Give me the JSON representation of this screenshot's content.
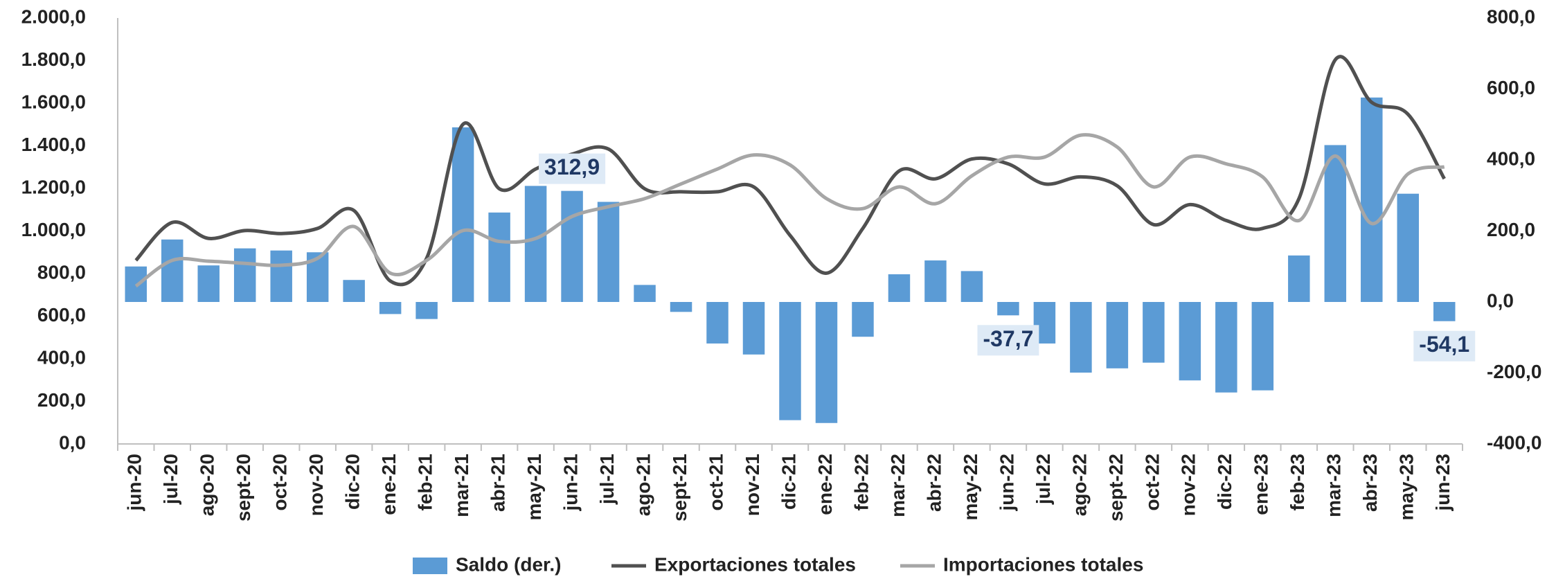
{
  "chart_data": {
    "type": "bar",
    "categories": [
      "jun-20",
      "jul-20",
      "ago-20",
      "sept-20",
      "oct-20",
      "nov-20",
      "dic-20",
      "ene-21",
      "feb-21",
      "mar-21",
      "abr-21",
      "may-21",
      "jun-21",
      "jul-21",
      "ago-21",
      "sept-21",
      "oct-21",
      "nov-21",
      "dic-21",
      "ene-22",
      "feb-22",
      "mar-22",
      "abr-22",
      "may-22",
      "jun-22",
      "jul-22",
      "ago-22",
      "sept-22",
      "oct-22",
      "nov-22",
      "dic-22",
      "ene-23",
      "feb-23",
      "mar-23",
      "abr-23",
      "may-23",
      "jun-23"
    ],
    "series": [
      {
        "name": "Saldo (der.)",
        "type": "bar",
        "axis": "y2",
        "color": "#5b9bd5",
        "values": [
          100,
          176,
          103,
          151,
          145,
          140,
          62,
          -34,
          -48,
          492,
          252,
          327,
          312.9,
          282,
          48,
          -28,
          -117,
          -148,
          -333,
          -341,
          -98,
          78,
          117,
          87,
          -37.7,
          -117,
          -199,
          -187,
          -171,
          -221,
          -255,
          -249,
          131,
          442,
          576,
          305,
          -54.1
        ],
        "value_labels": [
          null,
          null,
          null,
          null,
          null,
          null,
          null,
          null,
          null,
          null,
          null,
          null,
          "312,9",
          null,
          null,
          null,
          null,
          null,
          null,
          null,
          null,
          null,
          null,
          null,
          "-37,7",
          null,
          null,
          null,
          null,
          null,
          null,
          null,
          null,
          null,
          null,
          null,
          "-54,1"
        ]
      },
      {
        "name": "Exportaciones totales",
        "type": "line",
        "color": "#505050",
        "values": [
          862,
          1040,
          965,
          1002,
          988,
          1012,
          1096,
          765,
          872,
          1501,
          1198,
          1291,
          1361,
          1385,
          1198,
          1184,
          1184,
          1207,
          979,
          802,
          1012,
          1282,
          1245,
          1338,
          1315,
          1221,
          1254,
          1212,
          1030,
          1124,
          1049,
          1012,
          1152,
          1804,
          1604,
          1548,
          1245
        ]
      },
      {
        "name": "Importaciones totales",
        "type": "line",
        "color": "#a6a6a6",
        "values": [
          741,
          862,
          858,
          848,
          839,
          872,
          1021,
          802,
          862,
          1002,
          951,
          965,
          1068,
          1114,
          1152,
          1221,
          1291,
          1357,
          1310,
          1152,
          1105,
          1207,
          1128,
          1259,
          1347,
          1347,
          1450,
          1394,
          1207,
          1347,
          1315,
          1254,
          1049,
          1352,
          1035,
          1268,
          1301
        ]
      }
    ],
    "ylim": [
      0,
      2000
    ],
    "yticks": [
      {
        "value": 0,
        "label": "0,0"
      },
      {
        "value": 200,
        "label": "200,0"
      },
      {
        "value": 400,
        "label": "400,0"
      },
      {
        "value": 600,
        "label": "600,0"
      },
      {
        "value": 800,
        "label": "800,0"
      },
      {
        "value": 1000,
        "label": "1.000,0"
      },
      {
        "value": 1200,
        "label": "1.200,0"
      },
      {
        "value": 1400,
        "label": "1.400,0"
      },
      {
        "value": 1600,
        "label": "1.600,0"
      },
      {
        "value": 1800,
        "label": "1.800,0"
      },
      {
        "value": 2000,
        "label": "2.000,0"
      }
    ],
    "y2lim": [
      -400,
      800
    ],
    "y2ticks": [
      {
        "value": -400,
        "label": "-400,0"
      },
      {
        "value": -200,
        "label": "-200,0"
      },
      {
        "value": 0,
        "label": "0,0"
      },
      {
        "value": 200,
        "label": "200,0"
      },
      {
        "value": 400,
        "label": "400,0"
      },
      {
        "value": 600,
        "label": "600,0"
      },
      {
        "value": 800,
        "label": "800,0"
      }
    ],
    "legend": "bottom"
  }
}
